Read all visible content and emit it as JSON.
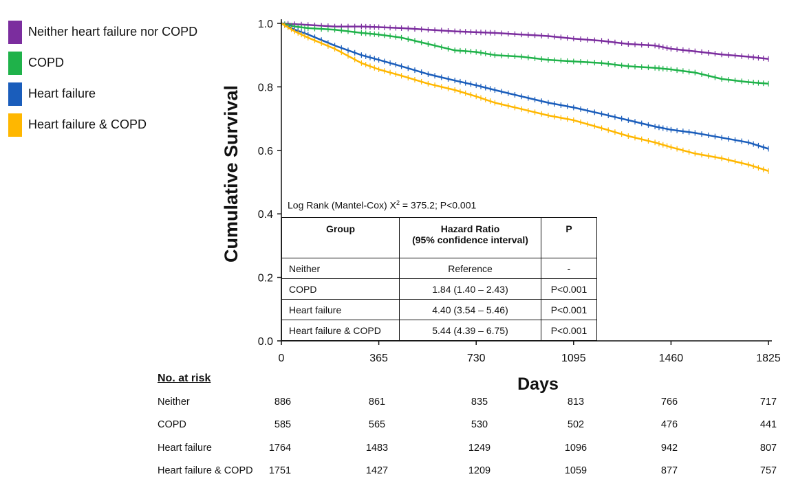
{
  "chart_data": {
    "type": "line",
    "xlabel": "Days",
    "ylabel": "Cumulative Survival",
    "xlim": [
      0,
      1825
    ],
    "ylim": [
      0.0,
      1.0
    ],
    "x_ticks": [
      "0",
      "365",
      "730",
      "1095",
      "1460",
      "1825"
    ],
    "y_ticks": [
      "0.0",
      "0.2",
      "0.4",
      "0.6",
      "0.8",
      "1.0"
    ],
    "legend_position": "left",
    "series": [
      {
        "name": "Neither heart failure nor COPD",
        "color": "#7B2D9E",
        "x": [
          0,
          100,
          200,
          300,
          365,
          450,
          550,
          650,
          730,
          800,
          900,
          1000,
          1095,
          1200,
          1300,
          1400,
          1460,
          1550,
          1650,
          1750,
          1825
        ],
        "y": [
          1.0,
          0.995,
          0.99,
          0.99,
          0.988,
          0.985,
          0.98,
          0.975,
          0.972,
          0.97,
          0.965,
          0.96,
          0.952,
          0.945,
          0.935,
          0.93,
          0.92,
          0.912,
          0.902,
          0.895,
          0.888
        ]
      },
      {
        "name": "COPD",
        "color": "#1FB24A",
        "x": [
          0,
          50,
          100,
          200,
          300,
          365,
          450,
          550,
          650,
          730,
          800,
          900,
          1000,
          1095,
          1200,
          1300,
          1400,
          1460,
          1550,
          1650,
          1750,
          1825
        ],
        "y": [
          1.0,
          0.99,
          0.985,
          0.98,
          0.97,
          0.965,
          0.955,
          0.935,
          0.915,
          0.91,
          0.9,
          0.895,
          0.885,
          0.88,
          0.875,
          0.865,
          0.86,
          0.855,
          0.845,
          0.825,
          0.815,
          0.81
        ]
      },
      {
        "name": "Heart failure",
        "color": "#1A5DBB",
        "x": [
          0,
          50,
          100,
          200,
          300,
          365,
          450,
          550,
          650,
          730,
          800,
          900,
          1000,
          1095,
          1200,
          1300,
          1400,
          1460,
          1550,
          1650,
          1750,
          1825
        ],
        "y": [
          1.0,
          0.98,
          0.965,
          0.93,
          0.9,
          0.885,
          0.865,
          0.84,
          0.82,
          0.805,
          0.79,
          0.77,
          0.75,
          0.735,
          0.715,
          0.695,
          0.675,
          0.665,
          0.655,
          0.64,
          0.625,
          0.605
        ]
      },
      {
        "name": "Heart failure & COPD",
        "color": "#FFB700",
        "x": [
          0,
          50,
          100,
          200,
          300,
          365,
          450,
          550,
          650,
          730,
          800,
          900,
          1000,
          1095,
          1200,
          1300,
          1400,
          1460,
          1550,
          1650,
          1750,
          1825
        ],
        "y": [
          1.0,
          0.975,
          0.955,
          0.92,
          0.875,
          0.855,
          0.835,
          0.81,
          0.79,
          0.77,
          0.75,
          0.73,
          0.71,
          0.695,
          0.67,
          0.645,
          0.625,
          0.61,
          0.59,
          0.575,
          0.555,
          0.535
        ]
      }
    ]
  },
  "legend": [
    {
      "label": "Neither heart failure nor COPD",
      "color": "#7B2D9E"
    },
    {
      "label": "COPD",
      "color": "#1FB24A"
    },
    {
      "label": "Heart failure",
      "color": "#1A5DBB"
    },
    {
      "label": "Heart failure & COPD",
      "color": "#FFB700"
    }
  ],
  "log_rank": {
    "prefix": "Log Rank (Mantel-Cox) X",
    "sup": "2",
    "suffix": " = 375.2; P<0.001"
  },
  "hr_table": {
    "headers": {
      "group": "Group",
      "hr_line1": "Hazard Ratio",
      "hr_line2": "(95% confidence interval)",
      "p": "P"
    },
    "rows": [
      {
        "group": "Neither",
        "hr": "Reference",
        "p": "-"
      },
      {
        "group": "COPD",
        "hr": "1.84 (1.40 – 2.43)",
        "p": "P<0.001"
      },
      {
        "group": "Heart failure",
        "hr": "4.40 (3.54 – 5.46)",
        "p": "P<0.001"
      },
      {
        "group": "Heart failure & COPD",
        "hr": "5.44 (4.39 – 6.75)",
        "p": "P<0.001"
      }
    ]
  },
  "risk_table": {
    "title": "No. at risk",
    "rows": [
      {
        "label": "Neither",
        "values": [
          "886",
          "861",
          "835",
          "813",
          "766",
          "717"
        ]
      },
      {
        "label": "COPD",
        "values": [
          "585",
          "565",
          "530",
          "502",
          "476",
          "441"
        ]
      },
      {
        "label": "Heart failure",
        "values": [
          "1764",
          "1483",
          "1249",
          "1096",
          "942",
          "807"
        ]
      },
      {
        "label": "Heart failure & COPD",
        "values": [
          "1751",
          "1427",
          "1209",
          "1059",
          "877",
          "757"
        ]
      }
    ]
  }
}
